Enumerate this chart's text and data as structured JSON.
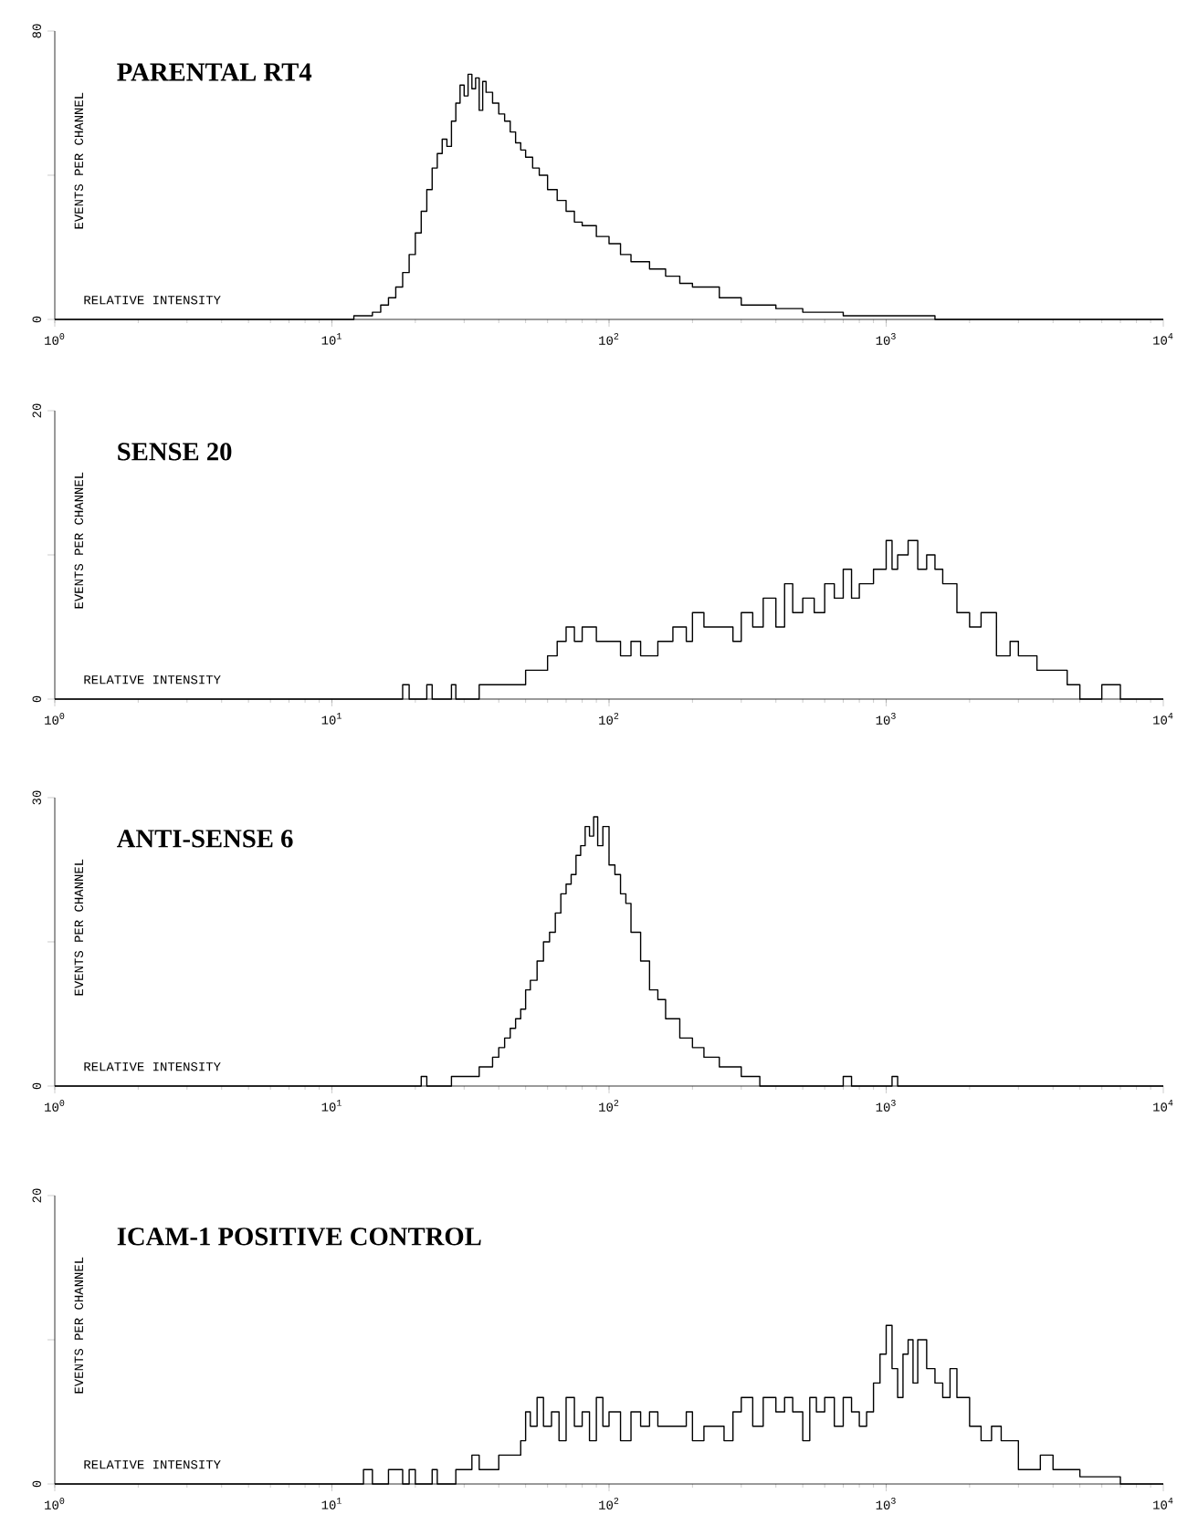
{
  "chart_data": [
    {
      "type": "step",
      "title": "PARENTAL RT4",
      "xlabel": "RELATIVE INTENSITY",
      "ylabel": "EVENTS PER CHANNEL",
      "log": "x",
      "color": "#000000",
      "xlim": [
        1,
        10000
      ],
      "ylim": [
        0,
        80
      ],
      "xticks": [
        {
          "value": 1,
          "label": "10$^{0}$"
        },
        {
          "value": 10,
          "label": "10$^{1}$"
        },
        {
          "value": 100,
          "label": "10$^{2}$"
        },
        {
          "value": 1000,
          "label": "10$^{3}$"
        },
        {
          "value": 10000,
          "label": "10$^{4}$"
        }
      ],
      "yticks": [
        0,
        {
          "value": 40,
          "label": null
        },
        80
      ],
      "x": [
        1,
        10,
        12,
        14,
        15,
        16,
        17,
        18,
        19,
        20,
        21,
        22,
        23,
        24,
        25,
        26,
        27,
        28,
        29,
        30,
        31,
        32,
        33,
        34,
        35,
        36,
        38,
        40,
        42,
        44,
        46,
        48,
        50,
        53,
        56,
        60,
        65,
        70,
        75,
        80,
        90,
        100,
        110,
        120,
        140,
        160,
        180,
        200,
        250,
        300,
        400,
        500,
        700,
        1000,
        1500,
        10000
      ],
      "values": [
        0,
        0,
        1,
        2,
        4,
        6,
        9,
        13,
        18,
        24,
        30,
        36,
        42,
        46,
        50,
        48,
        55,
        60,
        65,
        62,
        68,
        64,
        67,
        58,
        66,
        63,
        60,
        57,
        55,
        52,
        49,
        47,
        45,
        42,
        40,
        36,
        33,
        30,
        27,
        26,
        23,
        21,
        18,
        16,
        14,
        12,
        10,
        9,
        6,
        4,
        3,
        2,
        1,
        1,
        0,
        0
      ]
    },
    {
      "type": "step",
      "title": "SENSE 20",
      "xlabel": "RELATIVE INTENSITY",
      "ylabel": "EVENTS PER CHANNEL",
      "log": "x",
      "color": "#000000",
      "xlim": [
        1,
        10000
      ],
      "ylim": [
        0,
        20
      ],
      "xticks": [
        {
          "value": 1,
          "label": "10$^{0}$"
        },
        {
          "value": 10,
          "label": "10$^{1}$"
        },
        {
          "value": 100,
          "label": "10$^{2}$"
        },
        {
          "value": 1000,
          "label": "10$^{3}$"
        },
        {
          "value": 10000,
          "label": "10$^{4}$"
        }
      ],
      "yticks": [
        0,
        {
          "value": 10,
          "label": null
        },
        20
      ],
      "x": [
        1,
        17,
        18,
        19,
        22,
        23,
        27,
        28,
        34,
        40,
        45,
        50,
        55,
        60,
        65,
        70,
        75,
        80,
        90,
        100,
        110,
        120,
        130,
        150,
        170,
        190,
        200,
        220,
        250,
        280,
        300,
        330,
        360,
        400,
        430,
        460,
        500,
        550,
        600,
        650,
        700,
        750,
        800,
        900,
        1000,
        1050,
        1100,
        1200,
        1300,
        1400,
        1500,
        1600,
        1800,
        2000,
        2200,
        2500,
        2800,
        3000,
        3500,
        4000,
        4500,
        5000,
        6000,
        7000,
        10000
      ],
      "values": [
        0,
        0,
        1,
        0,
        1,
        0,
        1,
        0,
        1,
        1,
        1,
        2,
        2,
        3,
        4,
        5,
        4,
        5,
        4,
        4,
        3,
        4,
        3,
        4,
        5,
        4,
        6,
        5,
        5,
        4,
        6,
        5,
        7,
        5,
        8,
        6,
        7,
        6,
        8,
        7,
        9,
        7,
        8,
        9,
        11,
        9,
        10,
        11,
        9,
        10,
        9,
        8,
        6,
        5,
        6,
        3,
        4,
        3,
        2,
        2,
        1,
        0,
        1,
        0,
        0
      ]
    },
    {
      "type": "step",
      "title": "ANTI-SENSE 6",
      "xlabel": "RELATIVE INTENSITY",
      "ylabel": "EVENTS PER CHANNEL",
      "log": "x",
      "color": "#000000",
      "xlim": [
        1,
        10000
      ],
      "ylim": [
        0,
        30
      ],
      "xticks": [
        {
          "value": 1,
          "label": "10$^{0}$"
        },
        {
          "value": 10,
          "label": "10$^{1}$"
        },
        {
          "value": 100,
          "label": "10$^{2}$"
        },
        {
          "value": 1000,
          "label": "10$^{3}$"
        },
        {
          "value": 10000,
          "label": "10$^{4}$"
        }
      ],
      "yticks": [
        0,
        {
          "value": 15,
          "label": null
        },
        30
      ],
      "x": [
        1,
        20,
        21,
        22,
        26,
        27,
        30,
        32,
        34,
        36,
        38,
        40,
        42,
        44,
        46,
        48,
        50,
        52,
        55,
        58,
        61,
        64,
        67,
        70,
        73,
        76,
        79,
        82,
        85,
        88,
        91,
        95,
        100,
        105,
        110,
        115,
        120,
        130,
        140,
        150,
        160,
        180,
        200,
        220,
        250,
        300,
        350,
        650,
        700,
        750,
        1000,
        1050,
        1100,
        10000
      ],
      "values": [
        0,
        0,
        1,
        0,
        0,
        1,
        1,
        1,
        2,
        2,
        3,
        4,
        5,
        6,
        7,
        8,
        10,
        11,
        13,
        15,
        16,
        18,
        20,
        21,
        22,
        24,
        25,
        27,
        26,
        28,
        25,
        27,
        23,
        22,
        20,
        19,
        16,
        13,
        10,
        9,
        7,
        5,
        4,
        3,
        2,
        1,
        0,
        0,
        1,
        0,
        0,
        1,
        0,
        0
      ]
    },
    {
      "type": "step",
      "title": "ICAM-1 POSITIVE CONTROL",
      "xlabel": "RELATIVE INTENSITY",
      "ylabel": "EVENTS PER CHANNEL",
      "log": "x",
      "color": "#000000",
      "xlim": [
        1,
        10000
      ],
      "ylim": [
        0,
        20
      ],
      "xticks": [
        {
          "value": 1,
          "label": "10$^{0}$"
        },
        {
          "value": 10,
          "label": "10$^{1}$"
        },
        {
          "value": 100,
          "label": "10$^{2}$"
        },
        {
          "value": 1000,
          "label": "10$^{3}$"
        },
        {
          "value": 10000,
          "label": "10$^{4}$"
        }
      ],
      "yticks": [
        0,
        {
          "value": 10,
          "label": null
        },
        20
      ],
      "x": [
        1,
        12,
        13,
        14,
        16,
        17,
        18,
        19,
        20,
        23,
        24,
        28,
        30,
        32,
        34,
        38,
        40,
        44,
        48,
        50,
        52,
        55,
        58,
        62,
        66,
        70,
        75,
        80,
        85,
        90,
        95,
        100,
        110,
        120,
        130,
        140,
        150,
        170,
        190,
        200,
        220,
        240,
        260,
        280,
        300,
        330,
        360,
        400,
        430,
        460,
        500,
        530,
        560,
        600,
        650,
        700,
        750,
        800,
        850,
        900,
        950,
        1000,
        1050,
        1100,
        1150,
        1200,
        1250,
        1300,
        1400,
        1500,
        1600,
        1700,
        1800,
        2000,
        2200,
        2400,
        2600,
        2800,
        3000,
        3300,
        3600,
        4000,
        4500,
        5000,
        6000,
        7000,
        10000
      ],
      "values": [
        0,
        0,
        1,
        0,
        1,
        1,
        0,
        1,
        0,
        1,
        0,
        1,
        1,
        2,
        1,
        1,
        2,
        2,
        3,
        5,
        4,
        6,
        4,
        5,
        3,
        6,
        4,
        5,
        3,
        6,
        4,
        5,
        3,
        5,
        4,
        5,
        4,
        4,
        5,
        3,
        4,
        4,
        3,
        5,
        6,
        4,
        6,
        5,
        6,
        5,
        3,
        6,
        5,
        6,
        4,
        6,
        5,
        4,
        5,
        7,
        9,
        11,
        8,
        6,
        9,
        10,
        7,
        10,
        8,
        7,
        6,
        8,
        6,
        4,
        3,
        4,
        3,
        3,
        1,
        1,
        2,
        1,
        1,
        0.5,
        0.5,
        0,
        0
      ]
    }
  ]
}
